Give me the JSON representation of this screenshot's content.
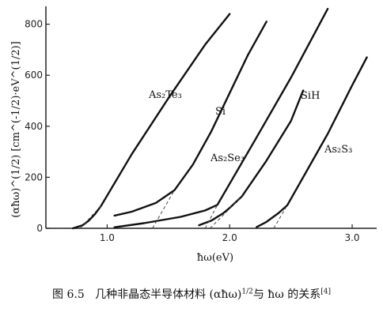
{
  "chart_data": {
    "type": "line",
    "title": "",
    "xlabel": "ħω(eV)",
    "ylabel": "(αħω)^(1/2) [cm^(-1/2)·eV^(1/2)]",
    "xlim": [
      0.5,
      3.2
    ],
    "ylim": [
      0,
      870
    ],
    "x_ticks": [
      1.0,
      2.0,
      3.0
    ],
    "x_tick_labels": [
      "1.0",
      "2.0",
      "3.0"
    ],
    "y_ticks": [
      0,
      200,
      400,
      600,
      800
    ],
    "y_tick_labels": [
      "0",
      "200",
      "400",
      "600",
      "800"
    ],
    "grid": false,
    "legend": "inline labels",
    "series": [
      {
        "name": "As₂Te₃",
        "x": [
          0.72,
          0.8,
          0.85,
          0.9,
          0.95,
          1.2,
          1.5,
          1.8,
          2.0
        ],
        "y": [
          0,
          12,
          30,
          55,
          88,
          290,
          510,
          720,
          840
        ]
      },
      {
        "name": "Si",
        "x": [
          1.06,
          1.2,
          1.4,
          1.55,
          1.7,
          1.85,
          2.0,
          2.15,
          2.3
        ],
        "y": [
          50,
          65,
          100,
          150,
          250,
          380,
          530,
          680,
          810
        ]
      },
      {
        "name": "As₂Se₃",
        "x": [
          1.06,
          1.3,
          1.6,
          1.8,
          1.9,
          2.2,
          2.5,
          2.7,
          2.8
        ],
        "y": [
          4,
          20,
          45,
          70,
          92,
          340,
          590,
          770,
          860
        ]
      },
      {
        "name": "SiH",
        "x": [
          1.75,
          1.85,
          1.95,
          2.0,
          2.1,
          2.3,
          2.5,
          2.6
        ],
        "y": [
          12,
          30,
          60,
          80,
          125,
          265,
          420,
          540
        ]
      },
      {
        "name": "As₂S₃",
        "x": [
          2.22,
          2.3,
          2.4,
          2.47,
          2.6,
          2.8,
          3.0,
          3.12
        ],
        "y": [
          5,
          25,
          60,
          90,
          200,
          370,
          560,
          670
        ]
      }
    ],
    "extrapolations": [
      {
        "x": [
          0.78,
          0.95
        ],
        "y": [
          0,
          88
        ]
      },
      {
        "x": [
          1.37,
          1.55
        ],
        "y": [
          0,
          150
        ]
      },
      {
        "x": [
          1.8,
          1.9
        ],
        "y": [
          0,
          92
        ]
      },
      {
        "x": [
          1.84,
          2.1
        ],
        "y": [
          0,
          125
        ]
      },
      {
        "x": [
          2.36,
          2.47
        ],
        "y": [
          0,
          90
        ]
      }
    ]
  },
  "caption": {
    "fig_no": "图 6.5",
    "text_a": "几种非晶态半导体材料 (αħω)",
    "sup_a": "1/2",
    "text_b": "与 ħω 的关系",
    "ref": "[4]"
  }
}
